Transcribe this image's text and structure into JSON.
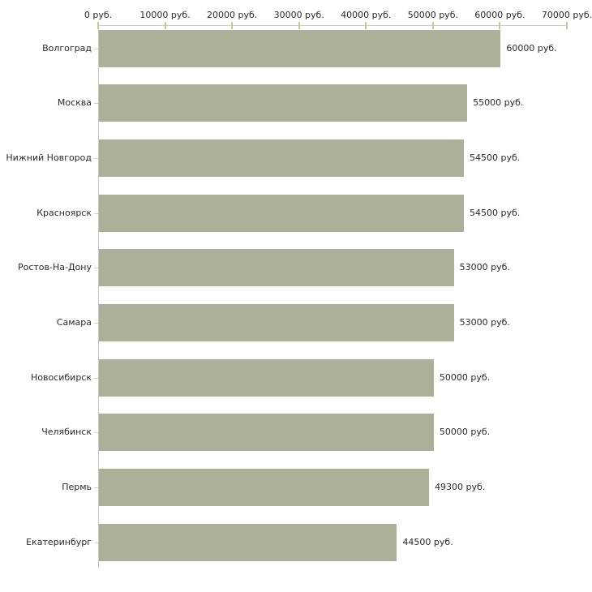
{
  "chart_data": {
    "type": "bar",
    "orientation": "horizontal",
    "title": "",
    "categories": [
      "Волгоград",
      "Москва",
      "Нижний Новгород",
      "Красноярск",
      "Ростов-На-Дону",
      "Самара",
      "Новосибирск",
      "Челябинск",
      "Пермь",
      "Екатеринбург"
    ],
    "values": [
      60000,
      55000,
      54500,
      54500,
      53000,
      53000,
      50000,
      50000,
      49300,
      44500
    ],
    "value_labels": [
      "60000 руб.",
      "55000 руб.",
      "54500 руб.",
      "54500 руб.",
      "53000 руб.",
      "53000 руб.",
      "50000 руб.",
      "50000 руб.",
      "49300 руб.",
      "44500 руб."
    ],
    "unit": "руб.",
    "x_axis": {
      "position": "top",
      "range": [
        0,
        70000
      ],
      "ticks": [
        0,
        10000,
        20000,
        30000,
        40000,
        50000,
        60000,
        70000
      ],
      "tick_labels": [
        "0 руб.",
        "10000 руб.",
        "20000 руб.",
        "30000 руб.",
        "40000 руб.",
        "50000 руб.",
        "60000 руб.",
        "70000 руб."
      ]
    },
    "grid": false,
    "legend": null,
    "bar_color": "#abb199",
    "axis_color": "#c9c9c9",
    "tick_color": "#c7ca90"
  }
}
